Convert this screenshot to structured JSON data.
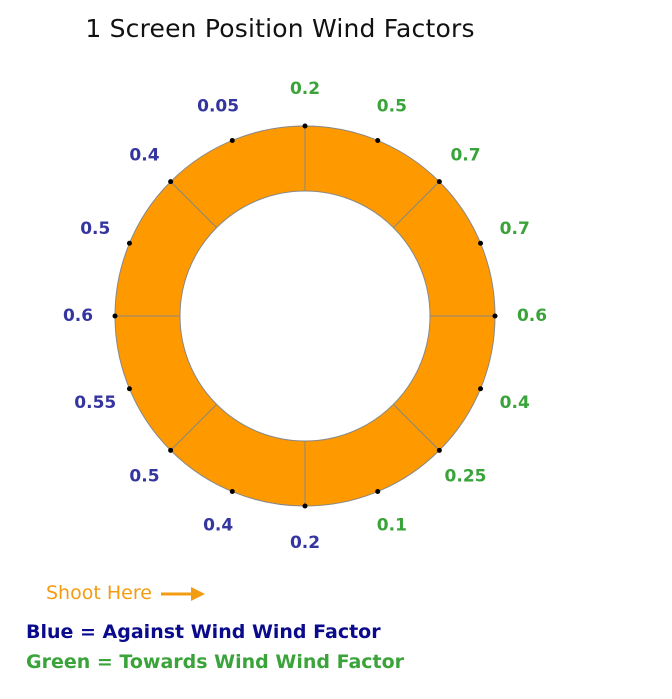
{
  "title": "1 Screen Position Wind Factors",
  "colors": {
    "ring_fill": "#ff9900",
    "ring_stroke": "#888888",
    "against": "#3535a0",
    "towards": "#3aa33a",
    "shoot": "#f39c12",
    "legend_blue": "#0a0a8c",
    "legend_green": "#3aa33a"
  },
  "ring": {
    "segments": 8,
    "positions_clockwise_from_top": [
      {
        "value": "0.2",
        "type": "towards"
      },
      {
        "value": "0.5",
        "type": "towards"
      },
      {
        "value": "0.7",
        "type": "towards"
      },
      {
        "value": "0.7",
        "type": "towards"
      },
      {
        "value": "0.6",
        "type": "towards"
      },
      {
        "value": "0.4",
        "type": "towards"
      },
      {
        "value": "0.25",
        "type": "towards"
      },
      {
        "value": "0.1",
        "type": "towards"
      },
      {
        "value": "0.2",
        "type": "against"
      },
      {
        "value": "0.4",
        "type": "against"
      },
      {
        "value": "0.5",
        "type": "against"
      },
      {
        "value": "0.55",
        "type": "against"
      },
      {
        "value": "0.6",
        "type": "against"
      },
      {
        "value": "0.5",
        "type": "against"
      },
      {
        "value": "0.4",
        "type": "against"
      },
      {
        "value": "0.05",
        "type": "against"
      }
    ]
  },
  "shoot": {
    "label": "Shoot Here",
    "icon": "arrow-right-icon"
  },
  "legend": {
    "blue": "Blue = Against Wind Wind Factor",
    "green": "Green = Towards Wind Wind Factor"
  }
}
